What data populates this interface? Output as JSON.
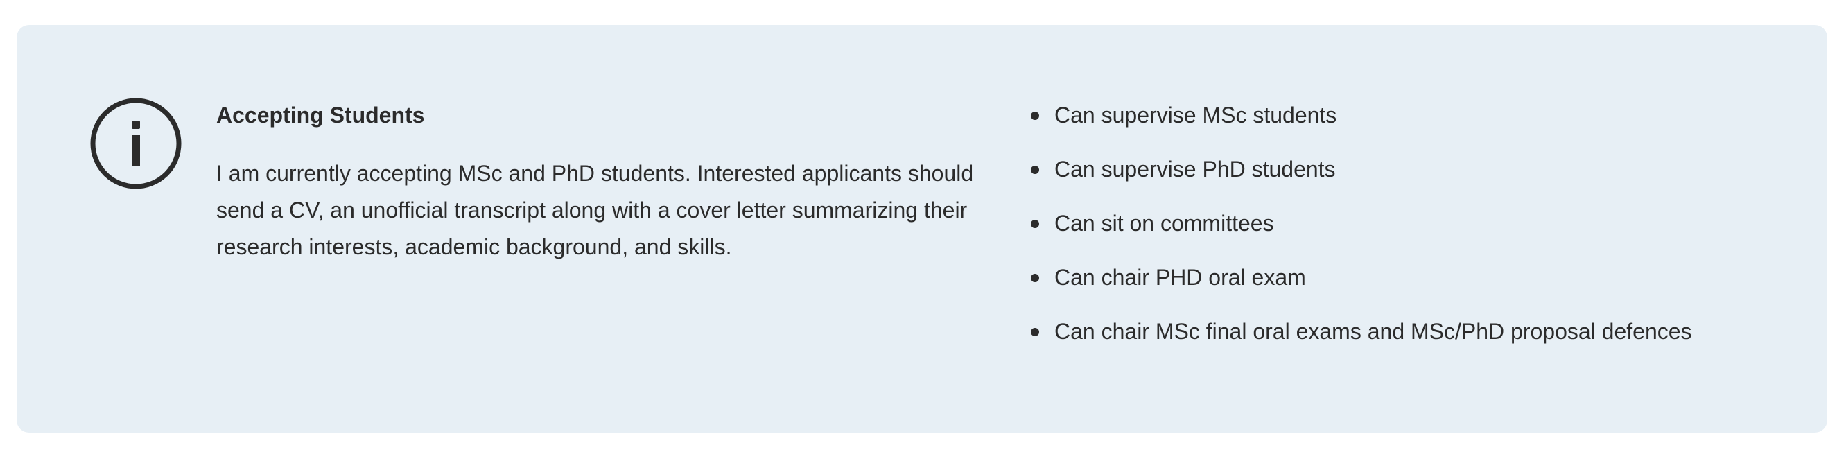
{
  "notice": {
    "icon": "info-icon",
    "title": "Accepting Students",
    "body": "I am currently accepting MSc and PhD students. Interested applicants should send a CV, an unofficial transcript along with a cover letter summarizing their research interests, academic background, and skills.",
    "capabilities": [
      "Can supervise MSc students",
      "Can supervise PhD students",
      "Can sit on committees",
      "Can chair PHD oral exam",
      "Can chair MSc final oral exams and MSc/PhD proposal defences"
    ]
  },
  "colors": {
    "panel_background": "#e7eff5",
    "text": "#2b2b2b"
  }
}
